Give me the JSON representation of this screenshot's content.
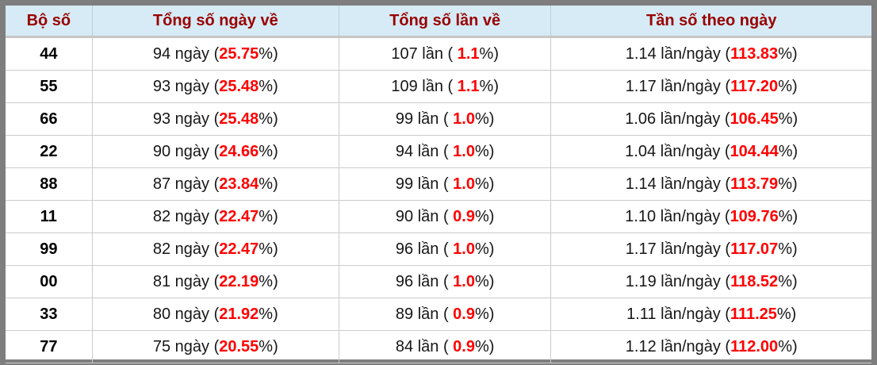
{
  "colors": {
    "frame_gray": "#7e7e7e",
    "header_bg": "#d6ebf5",
    "header_text": "#990000",
    "highlight_red": "#ff0000",
    "row_border": "#cccccc"
  },
  "table": {
    "headers": {
      "pair": "Bộ số",
      "days": "Tổng số ngày về",
      "times": "Tổng số lần về",
      "freq": "Tần số theo ngày"
    },
    "rows": [
      {
        "pair": "44",
        "days": {
          "pre": "94 ngày (",
          "val": "25.75",
          "post": "%)"
        },
        "times": {
          "pre": "107 lần ( ",
          "val": "1.1",
          "post": "%)"
        },
        "freq": {
          "pre": "1.14 lần/ngày (",
          "val": "113.83",
          "post": "%)"
        }
      },
      {
        "pair": "55",
        "days": {
          "pre": "93 ngày (",
          "val": "25.48",
          "post": "%)"
        },
        "times": {
          "pre": "109 lần ( ",
          "val": "1.1",
          "post": "%)"
        },
        "freq": {
          "pre": "1.17 lần/ngày (",
          "val": "117.20",
          "post": "%)"
        }
      },
      {
        "pair": "66",
        "days": {
          "pre": "93 ngày (",
          "val": "25.48",
          "post": "%)"
        },
        "times": {
          "pre": "99 lần ( ",
          "val": "1.0",
          "post": "%)"
        },
        "freq": {
          "pre": "1.06 lần/ngày (",
          "val": "106.45",
          "post": "%)"
        }
      },
      {
        "pair": "22",
        "days": {
          "pre": "90 ngày (",
          "val": "24.66",
          "post": "%)"
        },
        "times": {
          "pre": "94 lần ( ",
          "val": "1.0",
          "post": "%)"
        },
        "freq": {
          "pre": "1.04 lần/ngày (",
          "val": "104.44",
          "post": "%)"
        }
      },
      {
        "pair": "88",
        "days": {
          "pre": "87 ngày (",
          "val": "23.84",
          "post": "%)"
        },
        "times": {
          "pre": "99 lần ( ",
          "val": "1.0",
          "post": "%)"
        },
        "freq": {
          "pre": "1.14 lần/ngày (",
          "val": "113.79",
          "post": "%)"
        }
      },
      {
        "pair": "11",
        "days": {
          "pre": "82 ngày (",
          "val": "22.47",
          "post": "%)"
        },
        "times": {
          "pre": "90 lần ( ",
          "val": "0.9",
          "post": "%)"
        },
        "freq": {
          "pre": "1.10 lần/ngày (",
          "val": "109.76",
          "post": "%)"
        }
      },
      {
        "pair": "99",
        "days": {
          "pre": "82 ngày (",
          "val": "22.47",
          "post": "%)"
        },
        "times": {
          "pre": "96 lần ( ",
          "val": "1.0",
          "post": "%)"
        },
        "freq": {
          "pre": "1.17 lần/ngày (",
          "val": "117.07",
          "post": "%)"
        }
      },
      {
        "pair": "00",
        "days": {
          "pre": "81 ngày (",
          "val": "22.19",
          "post": "%)"
        },
        "times": {
          "pre": "96 lần ( ",
          "val": "1.0",
          "post": "%)"
        },
        "freq": {
          "pre": "1.19 lần/ngày (",
          "val": "118.52",
          "post": "%)"
        }
      },
      {
        "pair": "33",
        "days": {
          "pre": "80 ngày (",
          "val": "21.92",
          "post": "%)"
        },
        "times": {
          "pre": "89 lần ( ",
          "val": "0.9",
          "post": "%)"
        },
        "freq": {
          "pre": "1.11 lần/ngày (",
          "val": "111.25",
          "post": "%)"
        }
      },
      {
        "pair": "77",
        "days": {
          "pre": "75 ngày (",
          "val": "20.55",
          "post": "%)"
        },
        "times": {
          "pre": "84 lần ( ",
          "val": "0.9",
          "post": "%)"
        },
        "freq": {
          "pre": "1.12 lần/ngày (",
          "val": "112.00",
          "post": "%)"
        }
      }
    ]
  }
}
